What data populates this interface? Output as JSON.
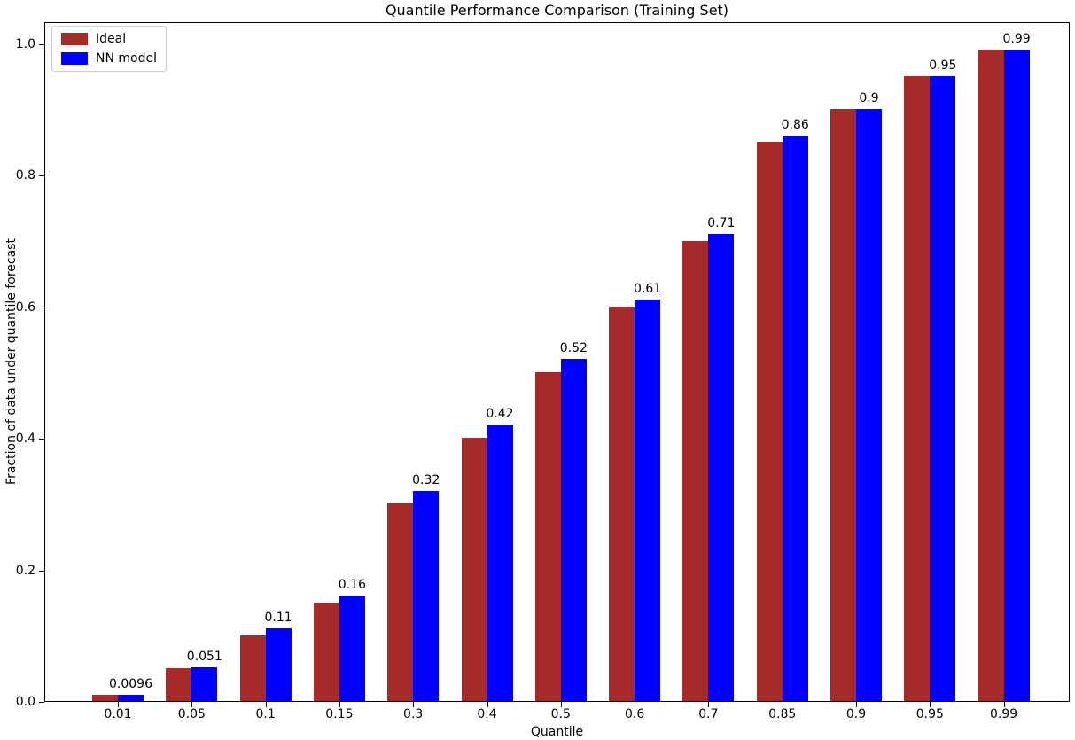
{
  "chart_data": {
    "type": "bar",
    "title": "Quantile Performance Comparison (Training Set)",
    "xlabel": "Quantile",
    "ylabel": "Fraction of data under quantile forecast",
    "categories": [
      "0.01",
      "0.05",
      "0.1",
      "0.15",
      "0.3",
      "0.4",
      "0.5",
      "0.6",
      "0.7",
      "0.85",
      "0.9",
      "0.95",
      "0.99"
    ],
    "series": [
      {
        "name": "Ideal",
        "color": "#A52A2A",
        "values": [
          0.01,
          0.05,
          0.1,
          0.15,
          0.3,
          0.4,
          0.5,
          0.6,
          0.7,
          0.85,
          0.9,
          0.95,
          0.99
        ]
      },
      {
        "name": "NN model",
        "color": "#0000FF",
        "values": [
          0.0096,
          0.051,
          0.11,
          0.16,
          0.32,
          0.42,
          0.52,
          0.61,
          0.71,
          0.86,
          0.9,
          0.95,
          0.99
        ]
      }
    ],
    "bar_labels": [
      "0.0096",
      "0.051",
      "0.11",
      "0.16",
      "0.32",
      "0.42",
      "0.52",
      "0.61",
      "0.71",
      "0.86",
      "0.9",
      "0.95",
      "0.99"
    ],
    "yticks": [
      "0.0",
      "0.2",
      "0.4",
      "0.6",
      "0.8",
      "1.0"
    ],
    "ylim": [
      0,
      1.034
    ],
    "grid": false,
    "legend_position": "upper left",
    "colors": {
      "spine": "#000000",
      "background": "#ffffff",
      "text": "#000000"
    }
  }
}
